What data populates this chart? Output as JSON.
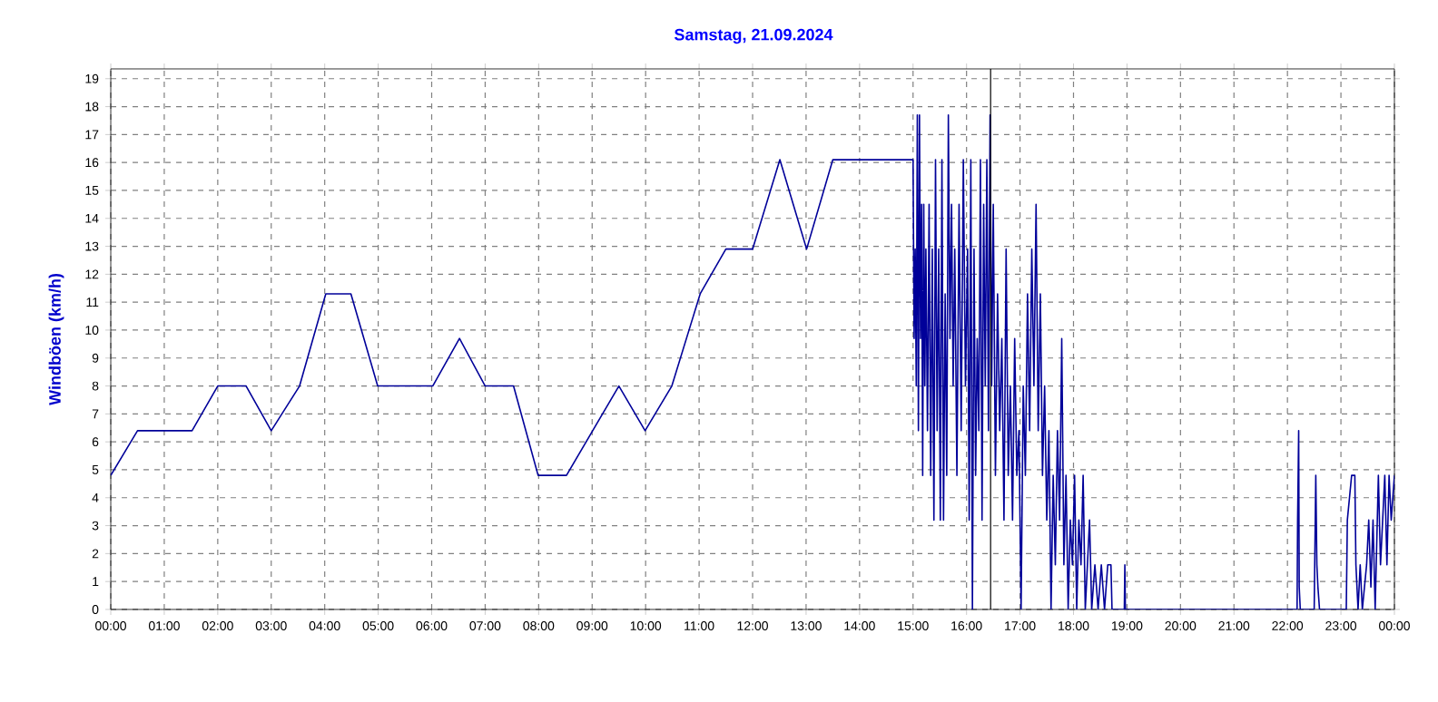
{
  "chart_data": {
    "type": "line",
    "title": "Samstag, 21.09.2024",
    "ylabel": "Windböen  (km/h)",
    "xlim": [
      0,
      24
    ],
    "ylim": [
      0,
      19.35
    ],
    "xticks": [
      {
        "value": 0,
        "label": "00:00"
      },
      {
        "value": 1,
        "label": "01:00"
      },
      {
        "value": 2,
        "label": "02:00"
      },
      {
        "value": 3,
        "label": "03:00"
      },
      {
        "value": 4,
        "label": "04:00"
      },
      {
        "value": 5,
        "label": "05:00"
      },
      {
        "value": 6,
        "label": "06:00"
      },
      {
        "value": 7,
        "label": "07:00"
      },
      {
        "value": 8,
        "label": "08:00"
      },
      {
        "value": 9,
        "label": "09:00"
      },
      {
        "value": 10,
        "label": "10:00"
      },
      {
        "value": 11,
        "label": "11:00"
      },
      {
        "value": 12,
        "label": "12:00"
      },
      {
        "value": 13,
        "label": "13:00"
      },
      {
        "value": 14,
        "label": "14:00"
      },
      {
        "value": 15,
        "label": "15:00"
      },
      {
        "value": 16,
        "label": "16:00"
      },
      {
        "value": 17,
        "label": "17:00"
      },
      {
        "value": 18,
        "label": "18:00"
      },
      {
        "value": 19,
        "label": "19:00"
      },
      {
        "value": 20,
        "label": "20:00"
      },
      {
        "value": 21,
        "label": "21:00"
      },
      {
        "value": 22,
        "label": "22:00"
      },
      {
        "value": 23,
        "label": "23:00"
      },
      {
        "value": 24,
        "label": "00:00"
      }
    ],
    "yticks": [
      0,
      1,
      2,
      3,
      4,
      5,
      6,
      7,
      8,
      9,
      10,
      11,
      12,
      13,
      14,
      15,
      16,
      17,
      18,
      19
    ],
    "grid": true,
    "line_style": "solid",
    "ref_lines": [
      {
        "axis": "x",
        "value": 16.45,
        "color": "#000000"
      }
    ],
    "series": [
      {
        "color": "#000099",
        "x": [
          0,
          0.5,
          1.52,
          2.0,
          2.53,
          3.0,
          3.53,
          4.02,
          4.49,
          4.99,
          6.02,
          6.52,
          7.0,
          7.53,
          7.99,
          8.52,
          9.5,
          9.99,
          10.49,
          11.02,
          11.5,
          12.0,
          12.51,
          13.01,
          13.5,
          15.0,
          15.02,
          15.04,
          15.06,
          15.08,
          15.1,
          15.12,
          15.14,
          15.16,
          15.18,
          15.2,
          15.22,
          15.24,
          15.27,
          15.3,
          15.33,
          15.36,
          15.39,
          15.42,
          15.45,
          15.48,
          15.51,
          15.54,
          15.57,
          15.6,
          15.63,
          15.66,
          15.69,
          15.72,
          15.75,
          15.78,
          15.82,
          15.86,
          15.9,
          15.94,
          15.98,
          16.02,
          16.05,
          16.08,
          16.11,
          16.14,
          16.17,
          16.2,
          16.23,
          16.26,
          16.29,
          16.32,
          16.35,
          16.38,
          16.41,
          16.44,
          16.47,
          16.5,
          16.54,
          16.58,
          16.62,
          16.66,
          16.7,
          16.74,
          16.78,
          16.82,
          16.86,
          16.9,
          16.94,
          16.98,
          17.02,
          17.06,
          17.1,
          17.14,
          17.18,
          17.22,
          17.26,
          17.3,
          17.34,
          17.38,
          17.42,
          17.46,
          17.5,
          17.54,
          17.58,
          17.62,
          17.66,
          17.7,
          17.74,
          17.78,
          17.82,
          17.86,
          17.9,
          17.94,
          17.98,
          18.02,
          18.06,
          18.1,
          18.14,
          18.18,
          18.22,
          18.26,
          18.3,
          18.34,
          18.4,
          18.46,
          18.52,
          18.58,
          18.64,
          18.7,
          18.72,
          18.95,
          18.96,
          18.97,
          22.18,
          22.19,
          22.21,
          22.22,
          22.24,
          22.5,
          22.51,
          22.53,
          22.55,
          22.57,
          22.6,
          23.1,
          23.12,
          23.2,
          23.26,
          23.28,
          23.32,
          23.36,
          23.4,
          23.48,
          23.52,
          23.56,
          23.6,
          23.64,
          23.7,
          23.74,
          23.78,
          23.82,
          23.86,
          23.9,
          23.94,
          24.0
        ],
        "values": [
          4.8,
          6.4,
          6.4,
          8.0,
          8.0,
          6.4,
          8.0,
          11.3,
          11.3,
          8.0,
          8.0,
          9.7,
          8.0,
          8.0,
          4.8,
          4.8,
          8.0,
          6.4,
          8.0,
          11.3,
          12.9,
          12.9,
          16.1,
          12.9,
          16.1,
          16.1,
          9.7,
          12.9,
          8.0,
          17.7,
          6.4,
          17.7,
          9.7,
          14.5,
          4.8,
          14.5,
          8.0,
          12.9,
          6.4,
          14.5,
          4.8,
          12.9,
          3.2,
          16.1,
          6.4,
          12.9,
          3.2,
          16.1,
          3.2,
          11.3,
          4.8,
          17.7,
          9.7,
          14.5,
          8.0,
          12.9,
          4.8,
          14.5,
          6.4,
          16.1,
          8.0,
          12.9,
          3.2,
          16.1,
          0,
          12.9,
          4.8,
          9.7,
          6.4,
          16.1,
          3.2,
          14.5,
          8.0,
          16.1,
          6.4,
          17.7,
          8.0,
          14.5,
          4.8,
          11.3,
          6.4,
          9.7,
          3.2,
          12.9,
          4.8,
          8.0,
          3.2,
          9.7,
          4.8,
          6.4,
          0,
          8.0,
          4.8,
          11.3,
          6.4,
          12.9,
          8.0,
          14.5,
          6.4,
          11.3,
          4.8,
          8.0,
          3.2,
          6.4,
          0,
          4.8,
          1.6,
          6.4,
          3.2,
          9.7,
          1.6,
          4.8,
          0,
          3.2,
          1.6,
          4.8,
          0,
          3.2,
          1.6,
          4.8,
          0,
          1.6,
          3.2,
          0,
          1.6,
          0,
          1.6,
          0,
          1.6,
          1.6,
          0,
          0,
          1.6,
          0,
          0,
          3.2,
          6.4,
          0.8,
          0,
          0,
          1.6,
          4.8,
          1.6,
          0.8,
          0,
          0,
          3.2,
          4.8,
          4.8,
          1.6,
          0,
          1.6,
          0,
          1.6,
          3.2,
          0.8,
          3.2,
          0,
          4.8,
          1.6,
          3.2,
          4.8,
          1.6,
          4.8,
          3.2,
          4.8
        ]
      }
    ]
  }
}
